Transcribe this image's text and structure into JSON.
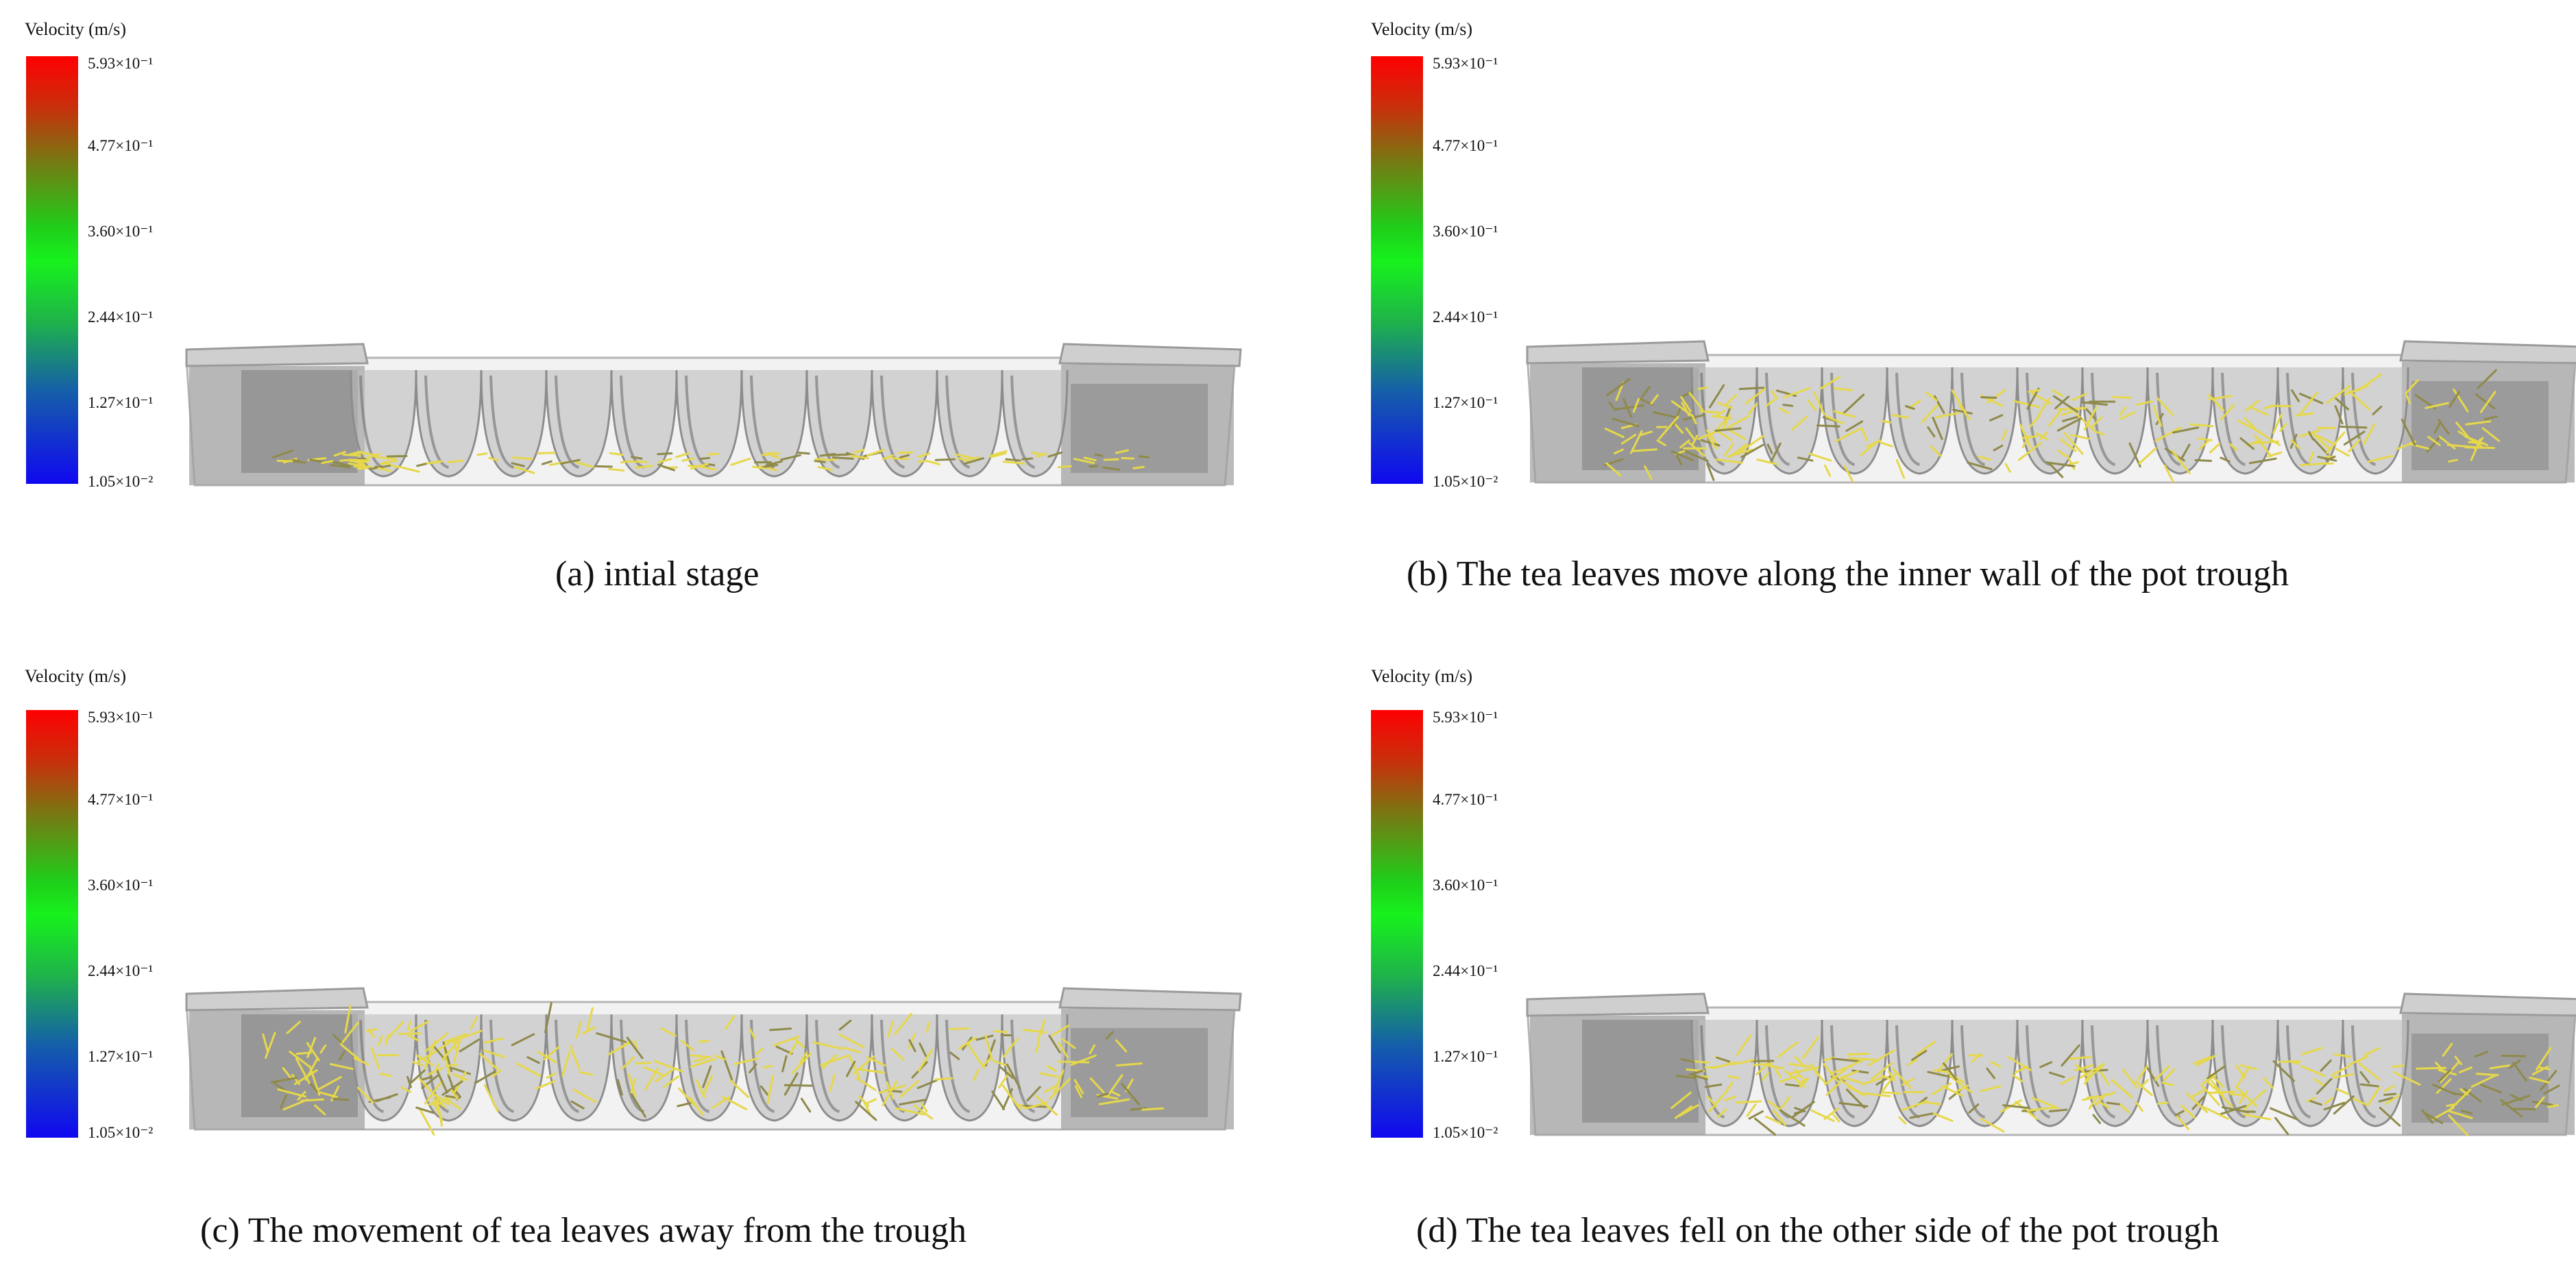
{
  "panels": [
    {
      "legend_title": "Velocity (m/s)",
      "ticks": [
        "5.93×10⁻¹",
        "4.77×10⁻¹",
        "3.60×10⁻¹",
        "2.44×10⁻¹",
        "1.27×10⁻¹",
        "1.05×10⁻²"
      ],
      "caption": "(a) intial stage"
    },
    {
      "legend_title": "Velocity (m/s)",
      "ticks": [
        "5.93×10⁻¹",
        "4.77×10⁻¹",
        "3.60×10⁻¹",
        "2.44×10⁻¹",
        "1.27×10⁻¹",
        "1.05×10⁻²"
      ],
      "caption": "(b) The tea leaves move along the inner wall of the pot trough"
    },
    {
      "legend_title": "Velocity (m/s)",
      "ticks": [
        "5.93×10⁻¹",
        "4.77×10⁻¹",
        "3.60×10⁻¹",
        "2.44×10⁻¹",
        "1.27×10⁻¹",
        "1.05×10⁻²"
      ],
      "caption": "(c) The movement of tea leaves away from the trough"
    },
    {
      "legend_title": "Velocity (m/s)",
      "ticks": [
        "5.93×10⁻¹",
        "4.77×10⁻¹",
        "3.60×10⁻¹",
        "2.44×10⁻¹",
        "1.27×10⁻¹",
        "1.05×10⁻²"
      ],
      "caption": "(d) The tea leaves fell on the other side of the pot trough"
    }
  ],
  "colors": {
    "legend_top": "#ff0000",
    "legend_mid": "#17f21c",
    "legend_bottom": "#1008f0",
    "leaves": "#e6d84a",
    "trough": "#8a8a8a"
  }
}
